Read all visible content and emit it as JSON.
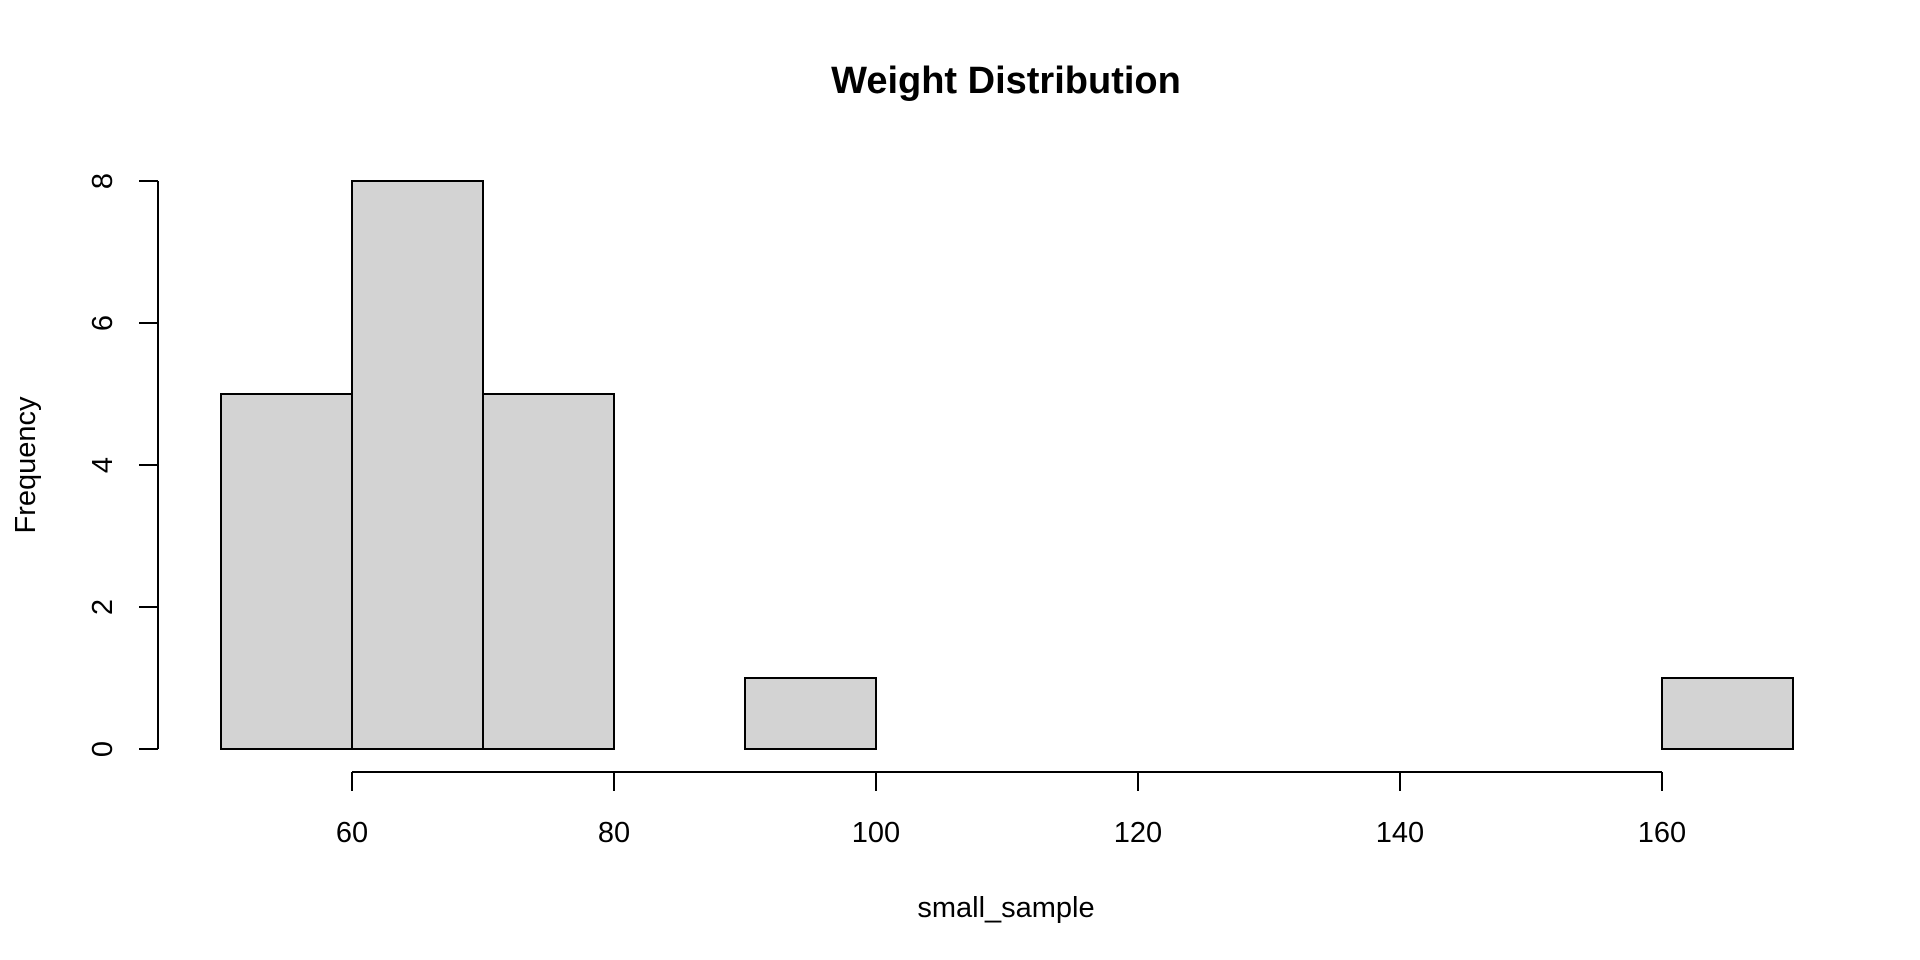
{
  "chart_data": {
    "type": "bar",
    "title": "Weight Distribution",
    "xlabel": "small_sample",
    "ylabel": "Frequency",
    "bins": [
      {
        "start": 50,
        "end": 60,
        "count": 5
      },
      {
        "start": 60,
        "end": 70,
        "count": 8
      },
      {
        "start": 70,
        "end": 80,
        "count": 5
      },
      {
        "start": 80,
        "end": 90,
        "count": 0
      },
      {
        "start": 90,
        "end": 100,
        "count": 1
      },
      {
        "start": 100,
        "end": 110,
        "count": 0
      },
      {
        "start": 110,
        "end": 120,
        "count": 0
      },
      {
        "start": 120,
        "end": 130,
        "count": 0
      },
      {
        "start": 130,
        "end": 140,
        "count": 0
      },
      {
        "start": 140,
        "end": 150,
        "count": 0
      },
      {
        "start": 150,
        "end": 160,
        "count": 0
      },
      {
        "start": 160,
        "end": 170,
        "count": 1
      }
    ],
    "x_ticks": [
      60,
      80,
      100,
      120,
      140,
      160
    ],
    "x_tick_labels": [
      "60",
      "80",
      "100",
      "120",
      "140",
      "160"
    ],
    "y_ticks": [
      0,
      2,
      4,
      6,
      8
    ],
    "y_tick_labels": [
      "0",
      "2",
      "4",
      "6",
      "8"
    ],
    "xlim": [
      60,
      160
    ],
    "ylim": [
      0,
      8
    ],
    "grid": false,
    "bar_color": "#d3d3d3",
    "edge_color": "#000000"
  }
}
